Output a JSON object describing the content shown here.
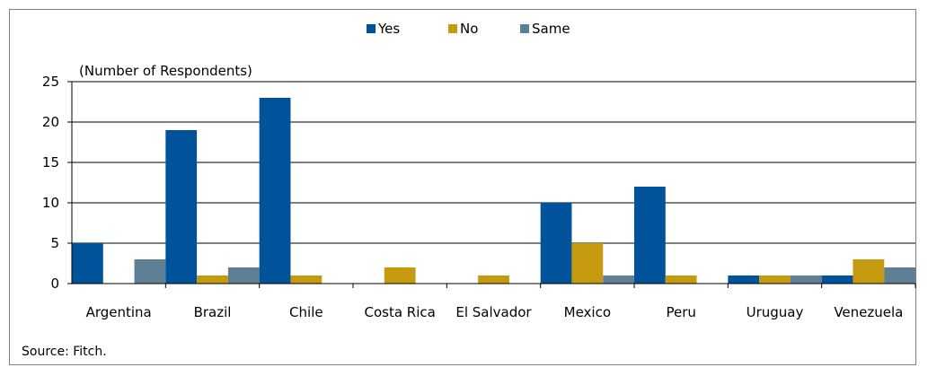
{
  "chart_data": {
    "type": "bar",
    "ylabel": "(Number of Respondents)",
    "ylim": [
      0,
      25
    ],
    "yticks": [
      0,
      5,
      10,
      15,
      20,
      25
    ],
    "categories": [
      "Argentina",
      "Brazil",
      "Chile",
      "Costa Rica",
      "El Salvador",
      "Mexico",
      "Peru",
      "Uruguay",
      "Venezuela"
    ],
    "series": [
      {
        "name": "Yes",
        "color": "#00539B",
        "values": [
          5,
          19,
          23,
          0,
          0,
          10,
          12,
          1,
          1
        ]
      },
      {
        "name": "No",
        "color": "#C59A0E",
        "values": [
          0,
          1,
          1,
          2,
          1,
          5,
          1,
          1,
          3
        ]
      },
      {
        "name": "Same",
        "color": "#5F7F95",
        "values": [
          3,
          2,
          0,
          0,
          0,
          1,
          0,
          1,
          2
        ]
      }
    ],
    "legend_position": "top-center",
    "grid": true
  },
  "source": "Source: Fitch."
}
